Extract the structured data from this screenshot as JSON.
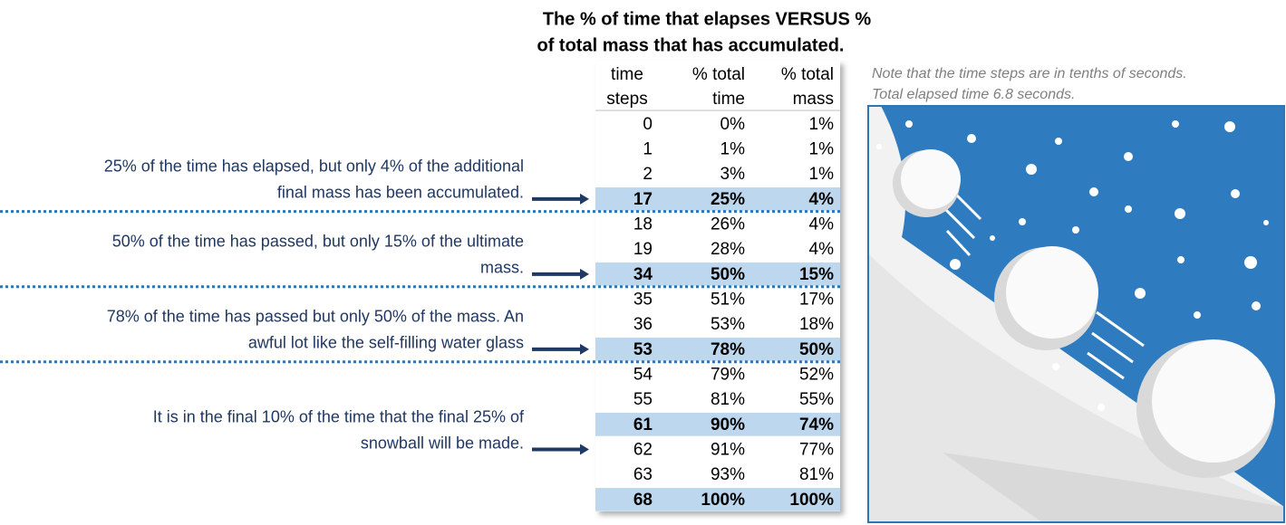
{
  "title": {
    "lines": [
      "The % of time that elapses VERSUS %",
      "of total mass that has accumulated."
    ]
  },
  "note": {
    "lines": [
      "Note that the time steps are in tenths of seconds.",
      "Total elapsed time 6.8 seconds."
    ]
  },
  "table": {
    "headers": [
      [
        "time",
        "steps"
      ],
      [
        "% total",
        "time"
      ],
      [
        "% total",
        "mass"
      ]
    ],
    "rows": [
      {
        "cells": [
          "0",
          "0%",
          "1%"
        ],
        "highlight": false
      },
      {
        "cells": [
          "1",
          "1%",
          "1%"
        ],
        "highlight": false
      },
      {
        "cells": [
          "2",
          "3%",
          "1%"
        ],
        "highlight": false
      },
      {
        "cells": [
          "17",
          "25%",
          "4%"
        ],
        "highlight": true
      },
      {
        "cells": [
          "18",
          "26%",
          "4%"
        ],
        "highlight": false
      },
      {
        "cells": [
          "19",
          "28%",
          "4%"
        ],
        "highlight": false
      },
      {
        "cells": [
          "34",
          "50%",
          "15%"
        ],
        "highlight": true
      },
      {
        "cells": [
          "35",
          "51%",
          "17%"
        ],
        "highlight": false
      },
      {
        "cells": [
          "36",
          "53%",
          "18%"
        ],
        "highlight": false
      },
      {
        "cells": [
          "53",
          "78%",
          "50%"
        ],
        "highlight": true
      },
      {
        "cells": [
          "54",
          "79%",
          "52%"
        ],
        "highlight": false
      },
      {
        "cells": [
          "55",
          "81%",
          "55%"
        ],
        "highlight": false
      },
      {
        "cells": [
          "61",
          "90%",
          "74%"
        ],
        "highlight": true
      },
      {
        "cells": [
          "62",
          "91%",
          "77%"
        ],
        "highlight": false
      },
      {
        "cells": [
          "63",
          "93%",
          "81%"
        ],
        "highlight": false
      },
      {
        "cells": [
          "68",
          "100%",
          "100%"
        ],
        "highlight": true
      }
    ]
  },
  "annotations": [
    {
      "lines": [
        "25% of the time has elapsed, but only 4% of the additional",
        "final mass has been accumulated."
      ],
      "row": 3
    },
    {
      "lines": [
        "50% of the time has passed, but only 15% of the ultimate",
        "mass."
      ],
      "row": 6
    },
    {
      "lines": [
        "78% of the time has passed but only 50% of the mass. An",
        "awful lot like the self-filling water glass"
      ],
      "row": 9
    },
    {
      "lines": [
        "It is in the final 10% of the time that the final 25% of",
        "snowball will be made."
      ],
      "row": 13
    }
  ]
}
